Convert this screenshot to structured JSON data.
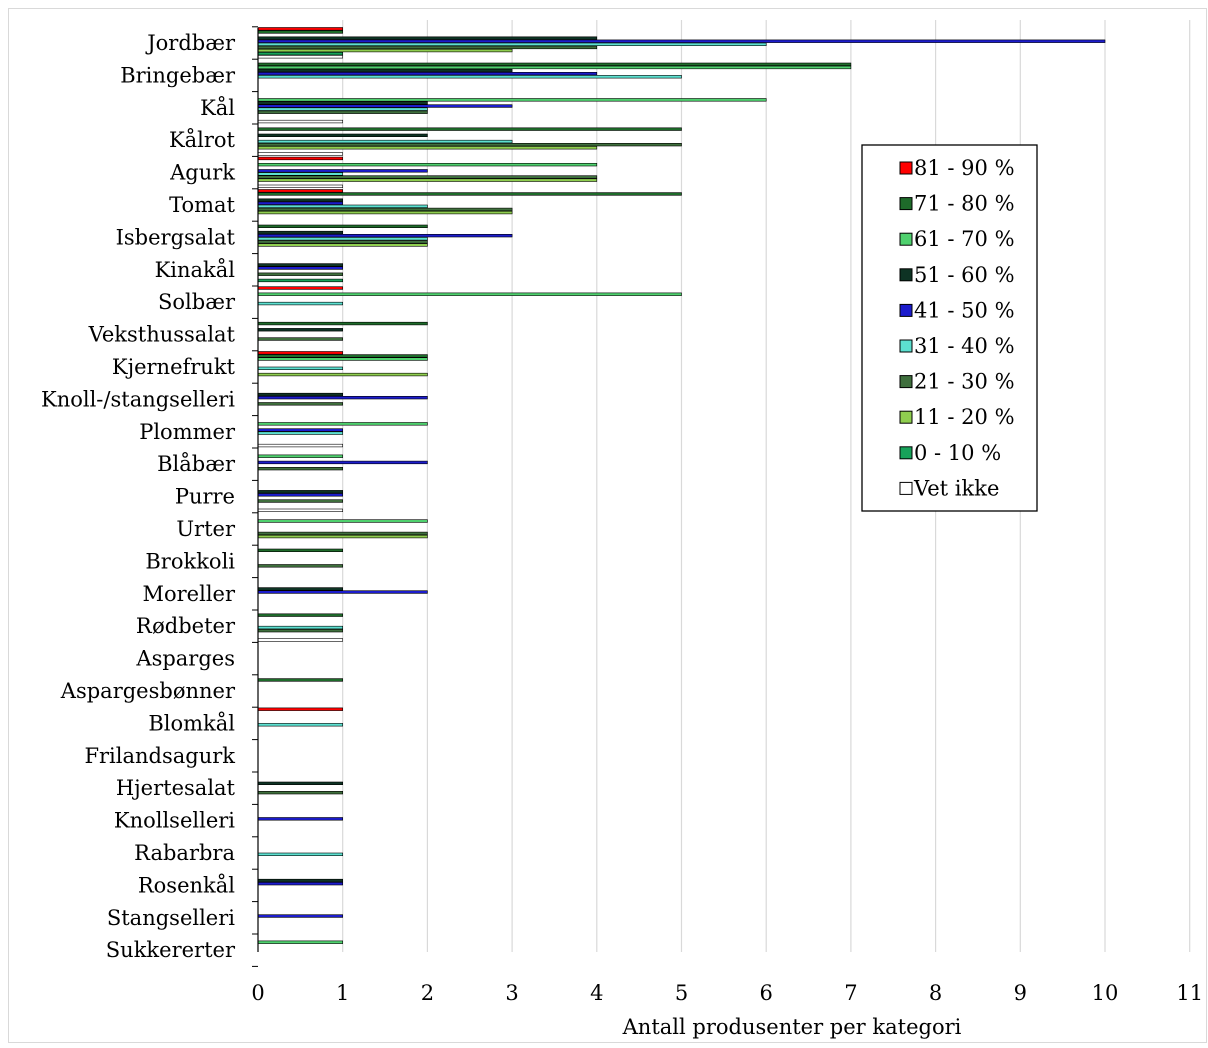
{
  "chart_data": {
    "type": "bar",
    "orientation": "horizontal",
    "title": "",
    "xlabel": "Antall produsenter per kategori",
    "ylabel": "",
    "xlim": [
      0,
      11
    ],
    "xticks": [
      "0",
      "1",
      "2",
      "3",
      "4",
      "5",
      "6",
      "7",
      "8",
      "9",
      "10",
      "11"
    ],
    "grid": "vertical",
    "legend_position": "right",
    "categories": [
      "Jordbær",
      "Bringebær",
      "Kål",
      "Kålrot",
      "Agurk",
      "Tomat",
      "Isbergsalat",
      "Kinakål",
      "Solbær",
      "Veksthussalat",
      "Kjernefrukt",
      "Knoll-/stangselleri",
      "Plommer",
      "Blåbær",
      "Purre",
      "Urter",
      "Brokkoli",
      "Moreller",
      "Rødbeter",
      "Asparges",
      "Aspargesbønner",
      "Blomkål",
      "Frilandsagurk",
      "Hjertesalat",
      "Knollselleri",
      "Rabarbra",
      "Rosenkål",
      "Stangselleri",
      "Sukkererter"
    ],
    "series": [
      {
        "name": "81 - 90 %",
        "color": "#ff0000",
        "values": [
          1,
          0,
          0,
          0,
          1,
          1,
          0,
          0,
          1,
          0,
          1,
          0,
          0,
          0,
          0,
          0,
          0,
          0,
          0,
          0,
          0,
          1,
          0,
          0,
          0,
          0,
          0,
          0,
          0
        ]
      },
      {
        "name": "71 - 80 %",
        "color": "#1e6b2a",
        "values": [
          1,
          7,
          0,
          5,
          0,
          5,
          2,
          0,
          0,
          2,
          2,
          0,
          0,
          0,
          0,
          0,
          1,
          0,
          1,
          0,
          1,
          0,
          0,
          0,
          0,
          0,
          0,
          0,
          0
        ]
      },
      {
        "name": "61 - 70 %",
        "color": "#4fd16e",
        "values": [
          0,
          7,
          6,
          0,
          4,
          0,
          0,
          0,
          5,
          0,
          2,
          0,
          2,
          1,
          0,
          2,
          0,
          0,
          0,
          0,
          0,
          0,
          0,
          0,
          0,
          0,
          0,
          0,
          1
        ]
      },
      {
        "name": "51 - 60 %",
        "color": "#0e3324",
        "values": [
          4,
          3,
          2,
          2,
          0,
          1,
          1,
          1,
          0,
          1,
          0,
          1,
          0,
          0,
          1,
          0,
          0,
          1,
          0,
          0,
          0,
          0,
          0,
          1,
          0,
          0,
          1,
          0,
          0
        ]
      },
      {
        "name": "41 - 50 %",
        "color": "#1c1ccc",
        "values": [
          10,
          4,
          3,
          0,
          2,
          1,
          3,
          1,
          0,
          0,
          0,
          2,
          1,
          2,
          1,
          0,
          0,
          2,
          0,
          0,
          0,
          0,
          0,
          0,
          1,
          0,
          1,
          1,
          0
        ]
      },
      {
        "name": "31 - 40 %",
        "color": "#5ce0d0",
        "values": [
          6,
          5,
          2,
          3,
          1,
          2,
          2,
          0,
          1,
          0,
          1,
          0,
          1,
          0,
          0,
          0,
          0,
          0,
          1,
          0,
          0,
          1,
          0,
          0,
          0,
          1,
          0,
          0,
          0
        ]
      },
      {
        "name": "21 - 30 %",
        "color": "#3f6f3d",
        "values": [
          4,
          0,
          2,
          5,
          4,
          3,
          2,
          1,
          0,
          1,
          0,
          1,
          0,
          1,
          1,
          2,
          1,
          0,
          1,
          0,
          0,
          0,
          0,
          1,
          0,
          0,
          0,
          0,
          0
        ]
      },
      {
        "name": "11 - 20 %",
        "color": "#8fce4f",
        "values": [
          3,
          0,
          0,
          4,
          4,
          3,
          2,
          0,
          0,
          0,
          2,
          0,
          0,
          0,
          0,
          2,
          0,
          0,
          0,
          0,
          0,
          0,
          0,
          0,
          0,
          0,
          0,
          0,
          0
        ]
      },
      {
        "name": "0 - 10 %",
        "color": "#17a35a",
        "values": [
          1,
          0,
          0,
          0,
          0,
          0,
          0,
          1,
          0,
          0,
          0,
          0,
          0,
          0,
          0,
          0,
          0,
          0,
          0,
          0,
          0,
          0,
          0,
          0,
          0,
          0,
          0,
          0,
          0
        ]
      },
      {
        "name": "Vet ikke",
        "color": "#ffffff",
        "values": [
          1,
          0,
          1,
          1,
          1,
          0,
          0,
          0,
          0,
          0,
          0,
          0,
          1,
          0,
          1,
          0,
          0,
          0,
          1,
          0,
          0,
          0,
          0,
          0,
          0,
          0,
          0,
          0,
          0
        ]
      }
    ]
  }
}
